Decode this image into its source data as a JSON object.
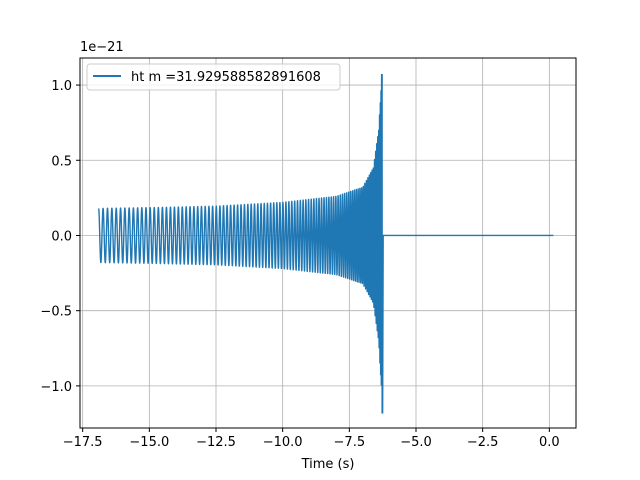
{
  "chart_data": {
    "type": "line",
    "title": "",
    "xlabel": "Time (s)",
    "ylabel": "",
    "y_offset_label": "1e−21",
    "xlim": [
      -17.6,
      1.0
    ],
    "ylim": [
      -1.28,
      1.18
    ],
    "x_ticks": [
      -17.5,
      -15.0,
      -12.5,
      -10.0,
      -7.5,
      -5.0,
      -2.5,
      0.0
    ],
    "x_tick_labels": [
      "−17.5",
      "−15.0",
      "−12.5",
      "−10.0",
      "−7.5",
      "−5.0",
      "−2.5",
      "0.0"
    ],
    "y_ticks": [
      -1.0,
      -0.5,
      0.0,
      0.5,
      1.0
    ],
    "y_tick_labels": [
      "−1.0",
      "−0.5",
      "0.0",
      "0.5",
      "1.0"
    ],
    "grid": true,
    "legend_position": "upper-left",
    "series": [
      {
        "name": "ht m =31.929588582891608",
        "color": "#1f77b4",
        "kind": "inspiral-chirp",
        "start_time": -16.9,
        "merger_time": -6.25,
        "end_time": 0.15,
        "envelope": [
          {
            "t": -16.9,
            "amp": 0.18
          },
          {
            "t": -15.0,
            "amp": 0.185
          },
          {
            "t": -12.5,
            "amp": 0.195
          },
          {
            "t": -10.0,
            "amp": 0.22
          },
          {
            "t": -8.0,
            "amp": 0.26
          },
          {
            "t": -7.0,
            "amp": 0.32
          },
          {
            "t": -6.6,
            "amp": 0.45
          },
          {
            "t": -6.4,
            "amp": 0.7
          },
          {
            "t": -6.28,
            "amp": 1.07
          },
          {
            "t": -6.25,
            "amp": 1.18
          }
        ],
        "post_merger_value": 0.0
      }
    ]
  }
}
